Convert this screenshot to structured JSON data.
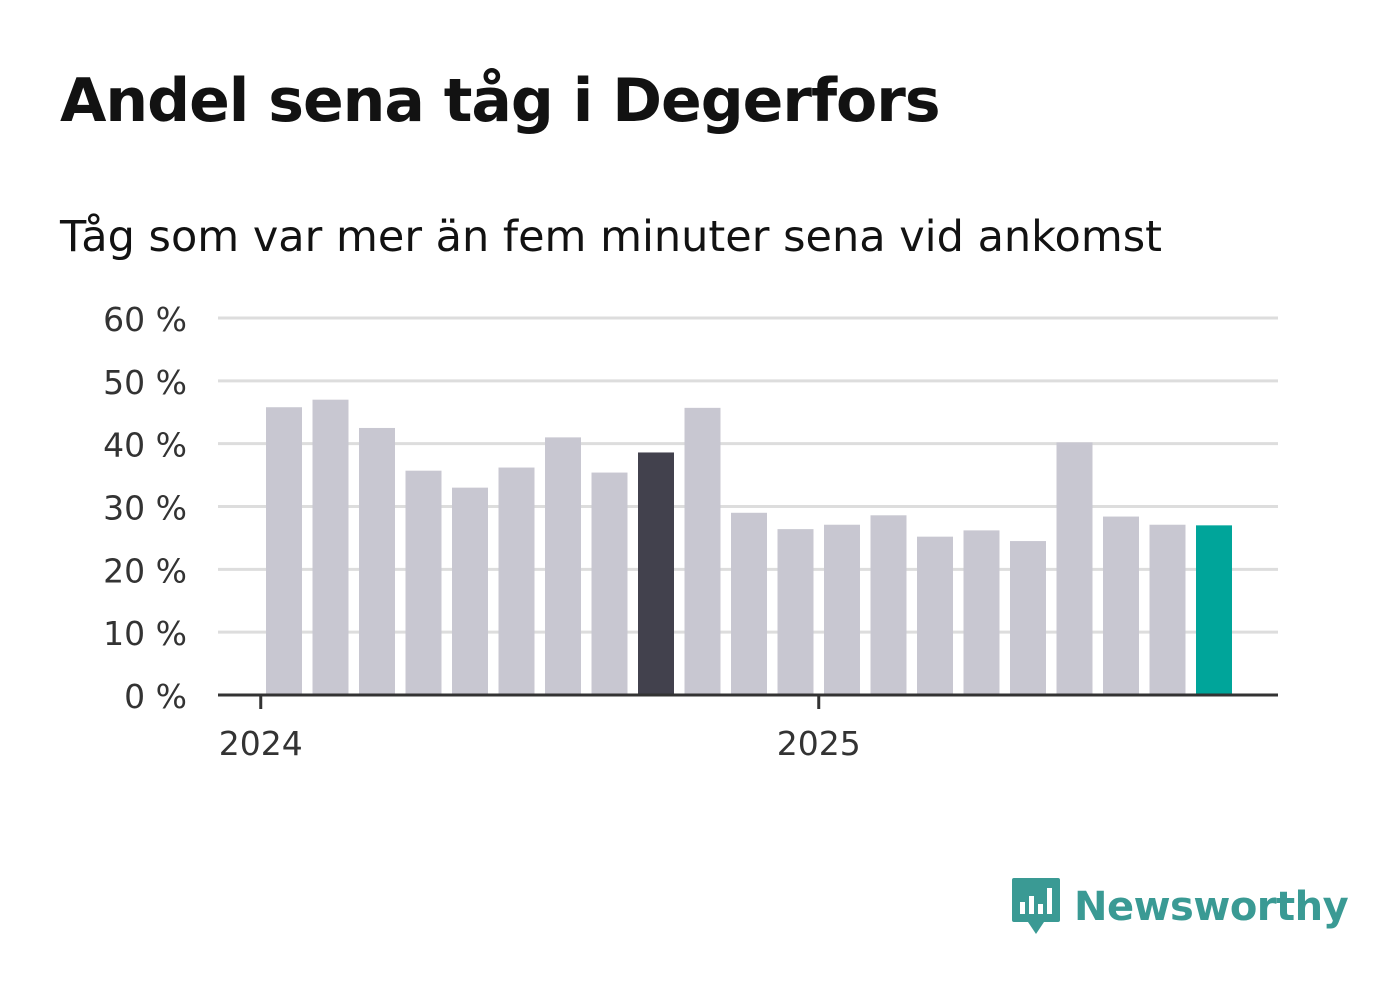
{
  "title": "Andel sena tåg i Degerfors",
  "subtitle": "Tåg som var mer än fem minuter sena vid ankomst",
  "brand": {
    "name": "Newsworthy",
    "color": "#3a9a94",
    "icon": "newsworthy-chart-bubble-icon"
  },
  "colors": {
    "bar": "#c8c7d1",
    "highlight_dark": "#42414d",
    "highlight_latest": "#00a59a",
    "grid": "#dddddd",
    "axis": "#333333"
  },
  "chart_data": {
    "type": "bar",
    "title": "Andel sena tåg i Degerfors",
    "subtitle": "Tåg som var mer än fem minuter sena vid ankomst",
    "xlabel": "",
    "ylabel": "",
    "ylim": [
      0,
      60
    ],
    "y_ticks": [
      0,
      10,
      20,
      30,
      40,
      50,
      60
    ],
    "y_tick_labels": [
      "0 %",
      "10 %",
      "20 %",
      "30 %",
      "40 %",
      "50 %",
      "60 %"
    ],
    "x_tick_labels": [
      {
        "label": "2024",
        "index": -0.5
      },
      {
        "label": "2025",
        "index": 11.5
      }
    ],
    "categories": [
      "2024-01",
      "2024-02",
      "2024-03",
      "2024-04",
      "2024-05",
      "2024-06",
      "2024-07",
      "2024-08",
      "2024-09",
      "2024-10",
      "2024-11",
      "2024-12",
      "2025-01",
      "2025-02",
      "2025-03",
      "2025-04",
      "2025-05",
      "2025-06",
      "2025-07",
      "2025-08",
      "2025-09"
    ],
    "values": [
      45.8,
      47.0,
      42.5,
      35.7,
      33.0,
      36.2,
      41.0,
      35.4,
      38.6,
      45.7,
      29.0,
      26.4,
      27.1,
      28.6,
      25.2,
      26.2,
      24.5,
      40.2,
      28.4,
      27.1,
      27.0
    ],
    "highlight": [
      {
        "index": 8,
        "role": "dark"
      },
      {
        "index": 20,
        "role": "latest"
      }
    ],
    "grid": true
  }
}
